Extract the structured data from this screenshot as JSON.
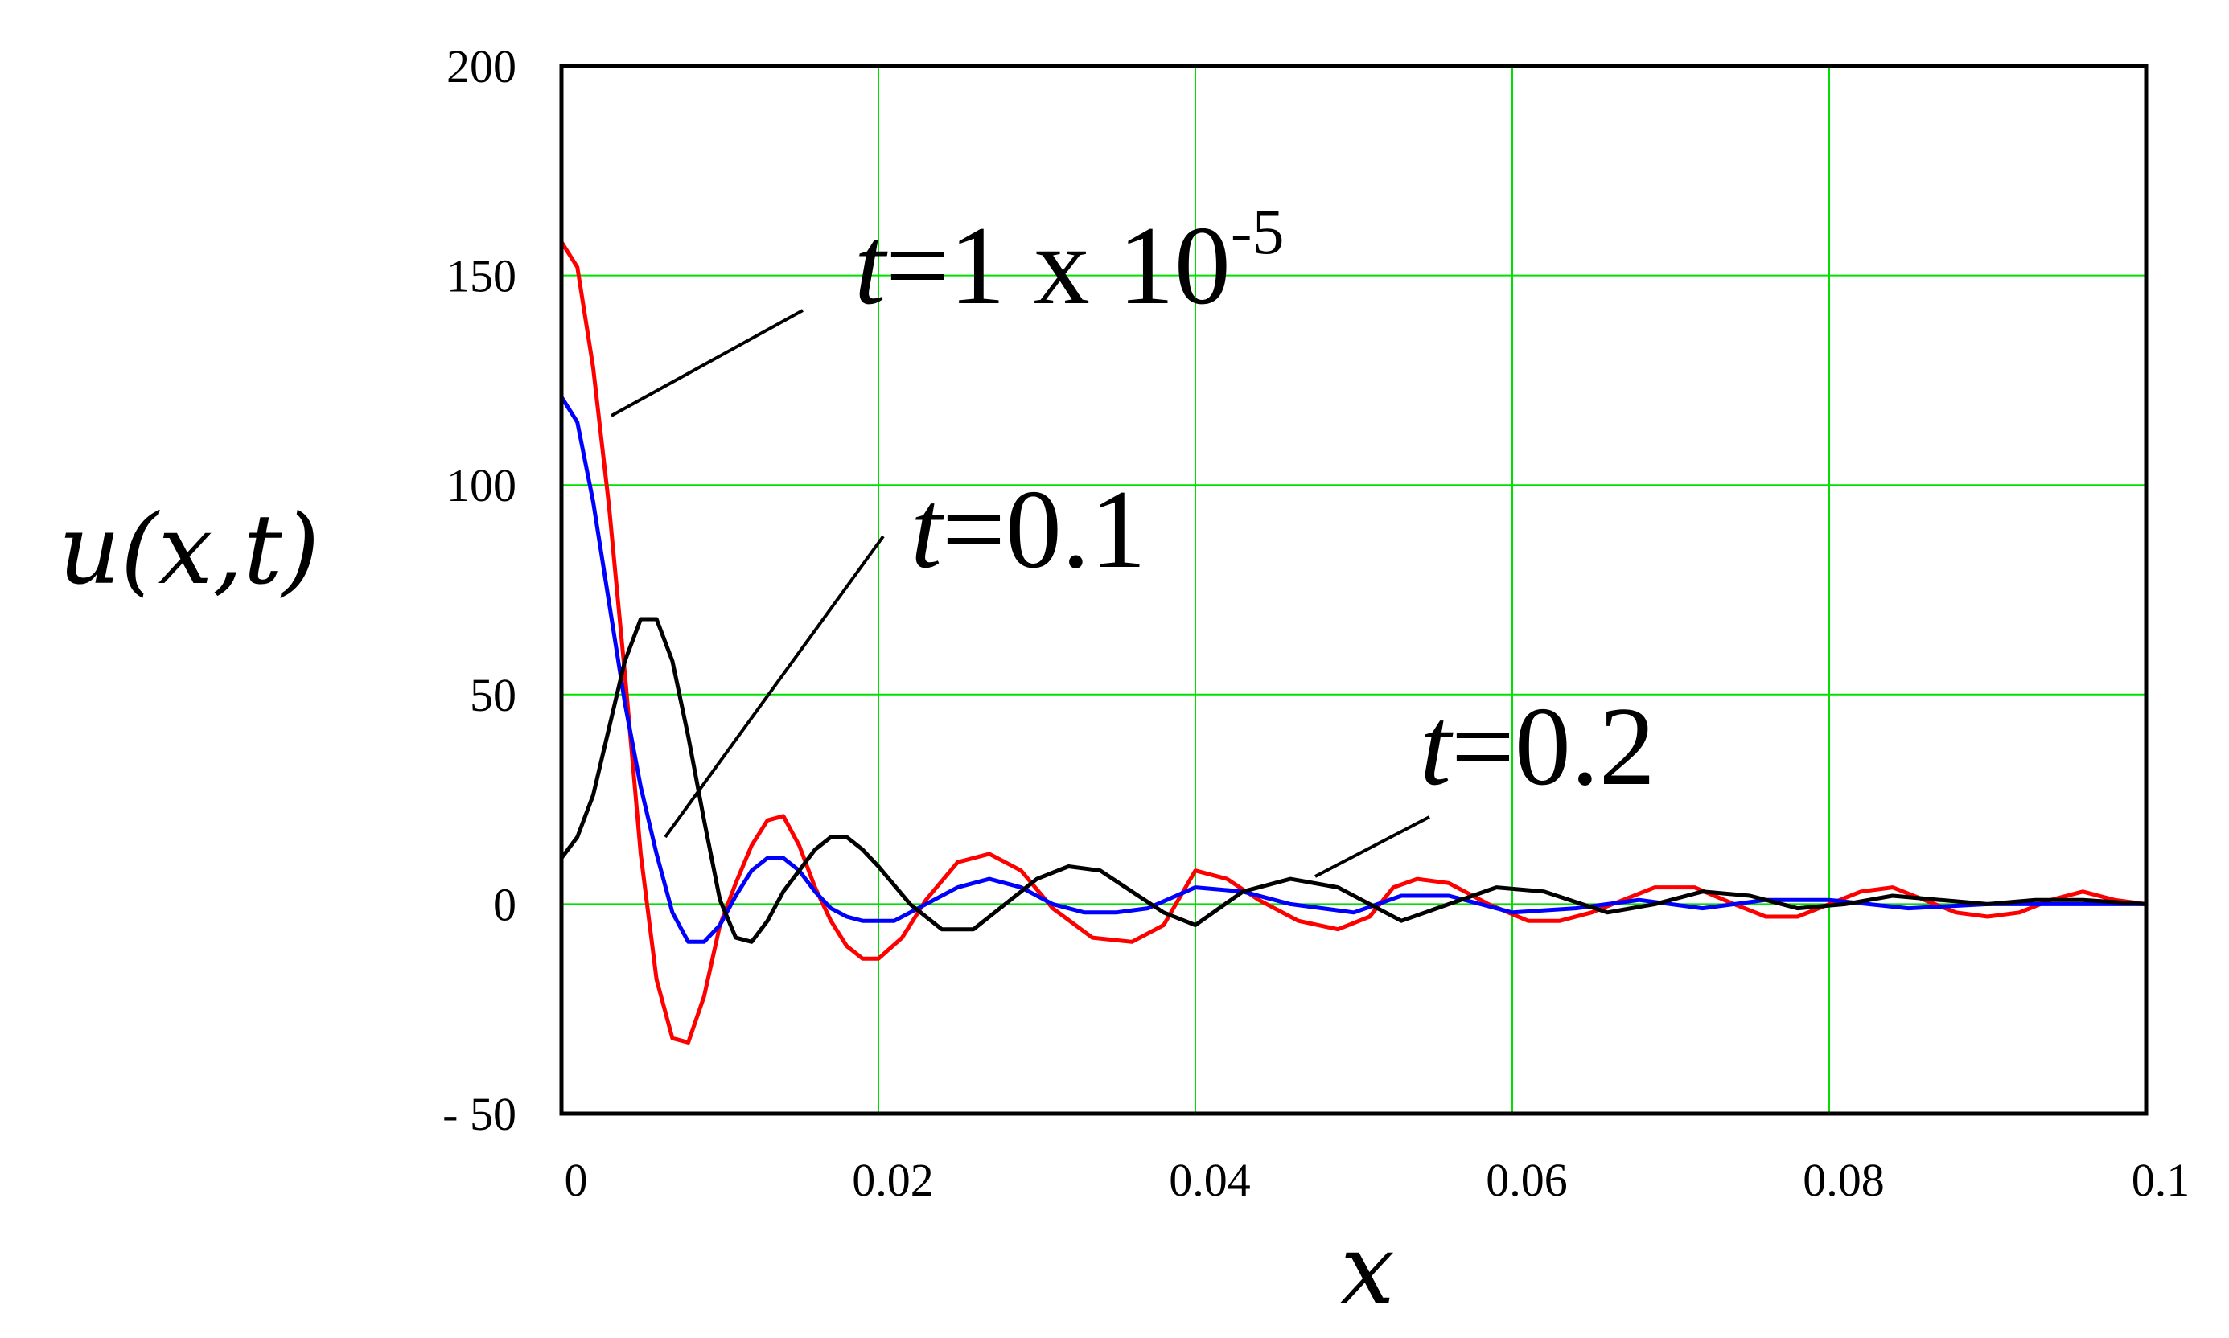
{
  "chart_data": {
    "type": "line",
    "xlabel": "x",
    "ylabel": "u(x,t)",
    "xlim": [
      0,
      0.1
    ],
    "ylim": [
      -50,
      200
    ],
    "grid": true,
    "grid_color": "#00e000",
    "x_ticks": [
      0,
      0.02,
      0.04,
      0.06,
      0.08,
      0.1
    ],
    "x_tick_labels": [
      "0",
      "0.02",
      "0.04",
      "0.06",
      "0.08",
      "0.1"
    ],
    "y_ticks": [
      -50,
      0,
      50,
      100,
      150,
      200
    ],
    "y_tick_labels": [
      "- 50",
      "0",
      "50",
      "100",
      "150",
      "200"
    ],
    "series": [
      {
        "name": "t=1 x 10-5",
        "color": "#ff0000",
        "x": [
          0,
          0.001,
          0.002,
          0.003,
          0.004,
          0.005,
          0.006,
          0.007,
          0.008,
          0.009,
          0.01,
          0.011,
          0.012,
          0.013,
          0.014,
          0.015,
          0.016,
          0.017,
          0.018,
          0.019,
          0.02,
          0.0215,
          0.023,
          0.025,
          0.027,
          0.029,
          0.031,
          0.0335,
          0.036,
          0.038,
          0.04,
          0.042,
          0.044,
          0.0465,
          0.049,
          0.051,
          0.0525,
          0.054,
          0.056,
          0.0585,
          0.061,
          0.063,
          0.065,
          0.067,
          0.069,
          0.0715,
          0.074,
          0.076,
          0.078,
          0.08,
          0.082,
          0.084,
          0.086,
          0.088,
          0.09,
          0.092,
          0.094,
          0.096,
          0.098,
          0.1
        ],
        "y": [
          158,
          152,
          128,
          95,
          55,
          12,
          -18,
          -32,
          -33,
          -22,
          -5,
          5,
          14,
          20,
          21,
          14,
          4,
          -4,
          -10,
          -13,
          -13,
          -8,
          1,
          10,
          12,
          8,
          -1,
          -8,
          -9,
          -5,
          8,
          6,
          1,
          -4,
          -6,
          -3,
          4,
          6,
          5,
          0,
          -4,
          -4,
          -2,
          1,
          4,
          4,
          0,
          -3,
          -3,
          0,
          3,
          4,
          1,
          -2,
          -3,
          -2,
          1,
          3,
          1,
          0
        ]
      },
      {
        "name": "t=0.1",
        "color": "#0000ff",
        "x": [
          0,
          0.001,
          0.002,
          0.003,
          0.004,
          0.005,
          0.006,
          0.007,
          0.008,
          0.009,
          0.01,
          0.011,
          0.012,
          0.013,
          0.014,
          0.015,
          0.016,
          0.017,
          0.018,
          0.019,
          0.02,
          0.021,
          0.023,
          0.025,
          0.027,
          0.029,
          0.031,
          0.033,
          0.035,
          0.037,
          0.04,
          0.043,
          0.046,
          0.05,
          0.053,
          0.056,
          0.06,
          0.064,
          0.068,
          0.072,
          0.076,
          0.08,
          0.085,
          0.09,
          0.095,
          0.1
        ],
        "y": [
          121,
          115,
          96,
          72,
          48,
          28,
          12,
          -2,
          -9,
          -9,
          -5,
          2,
          8,
          11,
          11,
          8,
          3,
          -1,
          -3,
          -4,
          -4,
          -4,
          0,
          4,
          6,
          4,
          0,
          -2,
          -2,
          -1,
          4,
          3,
          0,
          -2,
          2,
          2,
          -2,
          -1,
          1,
          -1,
          1,
          1,
          -1,
          0,
          0,
          0
        ]
      },
      {
        "name": "t=0.2",
        "color": "#000000",
        "x": [
          0,
          0.001,
          0.002,
          0.003,
          0.004,
          0.005,
          0.006,
          0.007,
          0.008,
          0.009,
          0.01,
          0.011,
          0.012,
          0.013,
          0.014,
          0.015,
          0.016,
          0.017,
          0.018,
          0.019,
          0.02,
          0.022,
          0.024,
          0.026,
          0.028,
          0.03,
          0.032,
          0.034,
          0.036,
          0.038,
          0.04,
          0.043,
          0.046,
          0.049,
          0.053,
          0.056,
          0.059,
          0.062,
          0.066,
          0.069,
          0.072,
          0.075,
          0.078,
          0.081,
          0.084,
          0.087,
          0.09,
          0.093,
          0.096,
          0.1
        ],
        "y": [
          11,
          16,
          26,
          42,
          58,
          68,
          68,
          58,
          40,
          20,
          1,
          -8,
          -9,
          -4,
          3,
          8,
          13,
          16,
          16,
          13,
          9,
          0,
          -6,
          -6,
          0,
          6,
          9,
          8,
          3,
          -2,
          -5,
          3,
          6,
          4,
          -4,
          0,
          4,
          3,
          -2,
          0,
          3,
          2,
          -1,
          0,
          2,
          1,
          0,
          1,
          1,
          0
        ]
      }
    ],
    "annotations": [
      {
        "variable": "t",
        "equals": "=1 x 10",
        "superscript": "-5",
        "series": "t=1 x 10-5"
      },
      {
        "variable": "t",
        "equals": "=0.1",
        "series": "t=0.1"
      },
      {
        "variable": "t",
        "equals": "=0.2",
        "series": "t=0.2"
      }
    ]
  }
}
